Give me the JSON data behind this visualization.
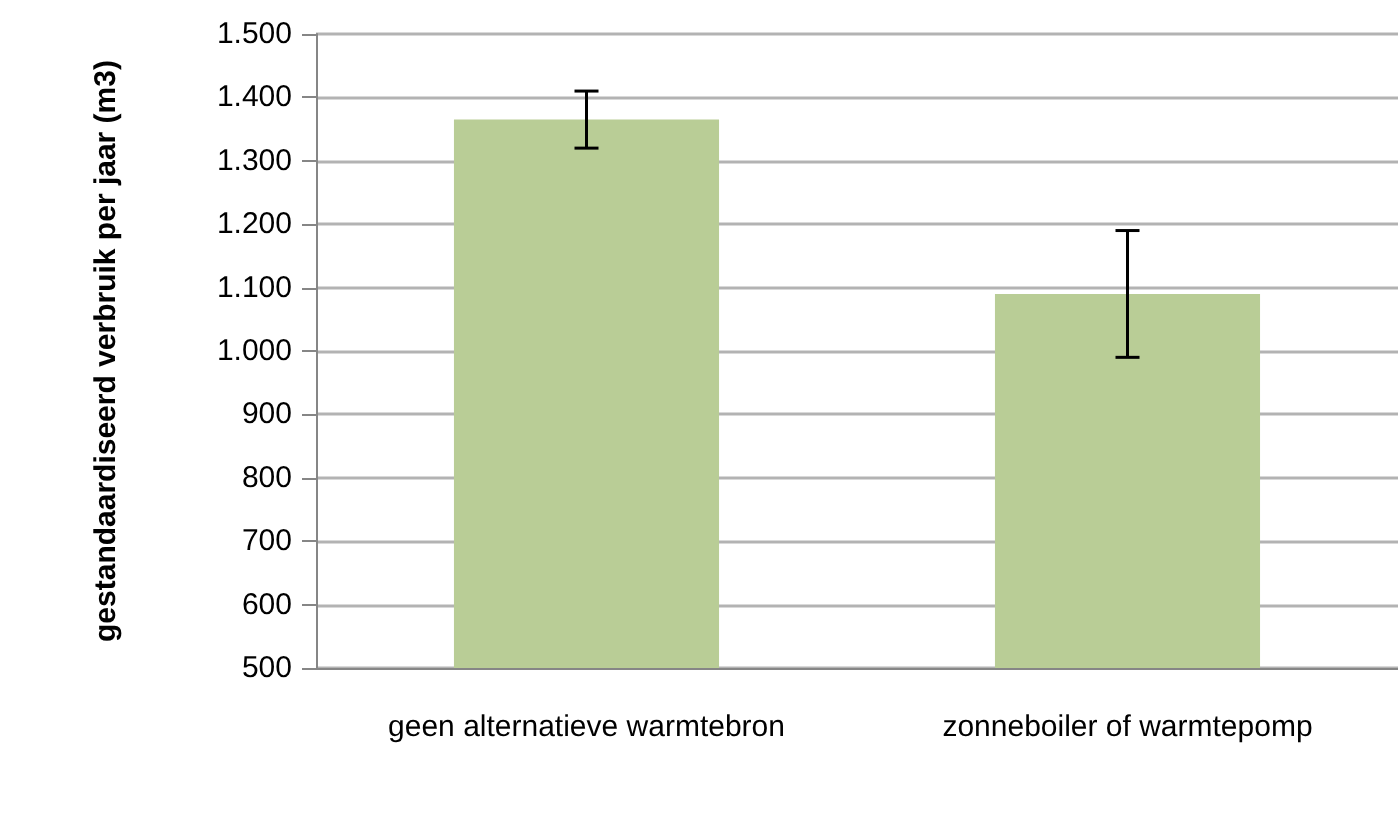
{
  "chart_data": {
    "type": "bar",
    "ylabel": "gestandaardiseerd verbruik per jaar (m3)",
    "categories": [
      "geen alternatieve warmtebron",
      "zonneboiler of warmtepomp"
    ],
    "values": [
      1365,
      1090
    ],
    "errors": [
      45,
      100
    ],
    "color": "#b9cd96",
    "ylim": [
      500,
      1500
    ],
    "yticks": [
      500,
      600,
      700,
      800,
      900,
      {
        "value": 1000,
        "label": "1.000"
      },
      {
        "value": 1100,
        "label": "1.100"
      },
      {
        "value": 1200,
        "label": "1.200"
      },
      {
        "value": 1300,
        "label": "1.300"
      },
      {
        "value": 1400,
        "label": "1.400"
      },
      {
        "value": 1500,
        "label": "1.500"
      }
    ],
    "grid": "y"
  }
}
